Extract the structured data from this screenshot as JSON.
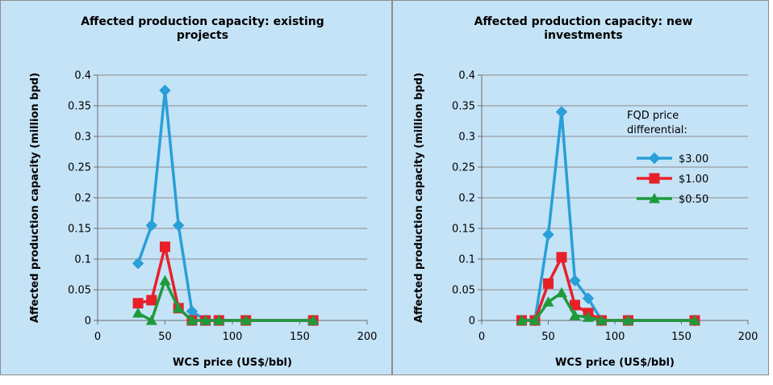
{
  "chart_data": [
    {
      "type": "line",
      "title": "Affected production capacity: existing projects",
      "title_lines": [
        "Affected production capacity: existing",
        "projects"
      ],
      "xlabel": "WCS price (US$/bbl)",
      "ylabel": "Affected production capacity (million bpd)",
      "xlim": [
        0,
        200
      ],
      "ylim": [
        0,
        0.4
      ],
      "x_ticks": [
        "0",
        "50",
        "100",
        "150",
        "200"
      ],
      "y_ticks": [
        "0",
        "0.05",
        "0.1",
        "0.15",
        "0.2",
        "0.25",
        "0.3",
        "0.35",
        "0.4"
      ],
      "grid": true,
      "legend": null,
      "series": [
        {
          "label": "$3.00",
          "color": "#2a9fd8",
          "marker": "diamond",
          "points": [
            [
              30,
              0.093
            ],
            [
              40,
              0.155
            ],
            [
              50,
              0.375
            ],
            [
              60,
              0.155
            ],
            [
              70,
              0.015
            ],
            [
              80,
              0
            ],
            [
              90,
              0
            ],
            [
              110,
              0
            ],
            [
              160,
              0
            ]
          ]
        },
        {
          "label": "$1.00",
          "color": "#e8202a",
          "marker": "square",
          "points": [
            [
              30,
              0.028
            ],
            [
              40,
              0.033
            ],
            [
              50,
              0.12
            ],
            [
              60,
              0.02
            ],
            [
              70,
              0
            ],
            [
              80,
              0
            ],
            [
              90,
              0
            ],
            [
              110,
              0
            ],
            [
              160,
              0
            ]
          ]
        },
        {
          "label": "$0.50",
          "color": "#1e9a3c",
          "marker": "triangle",
          "points": [
            [
              30,
              0.012
            ],
            [
              40,
              0
            ],
            [
              50,
              0.065
            ],
            [
              60,
              0.02
            ],
            [
              70,
              0
            ],
            [
              80,
              0
            ],
            [
              90,
              0
            ],
            [
              110,
              0
            ],
            [
              160,
              0
            ]
          ]
        }
      ]
    },
    {
      "type": "line",
      "title": "Affected production capacity: new investments",
      "title_lines": [
        "Affected production capacity: new",
        "investments"
      ],
      "xlabel": "WCS price (US$/bbl)",
      "ylabel": "Affected production capacity (million bpd)",
      "xlim": [
        0,
        200
      ],
      "ylim": [
        0,
        0.4
      ],
      "x_ticks": [
        "0",
        "50",
        "100",
        "150",
        "200"
      ],
      "y_ticks": [
        "0",
        "0.05",
        "0.1",
        "0.15",
        "0.2",
        "0.25",
        "0.3",
        "0.35",
        "0.4"
      ],
      "grid": true,
      "legend": {
        "title_lines": [
          "FQD price",
          "differential:"
        ],
        "placement": "right",
        "entries": [
          "$3.00",
          "$1.00",
          "$0.50"
        ]
      },
      "series": [
        {
          "label": "$3.00",
          "color": "#2a9fd8",
          "marker": "diamond",
          "points": [
            [
              30,
              0
            ],
            [
              40,
              0
            ],
            [
              50,
              0.14
            ],
            [
              60,
              0.34
            ],
            [
              70,
              0.065
            ],
            [
              80,
              0.036
            ],
            [
              90,
              0
            ],
            [
              110,
              0
            ],
            [
              160,
              0
            ]
          ]
        },
        {
          "label": "$1.00",
          "color": "#e8202a",
          "marker": "square",
          "points": [
            [
              30,
              0
            ],
            [
              40,
              0
            ],
            [
              50,
              0.06
            ],
            [
              60,
              0.103
            ],
            [
              70,
              0.025
            ],
            [
              80,
              0.012
            ],
            [
              90,
              0
            ],
            [
              110,
              0
            ],
            [
              160,
              0
            ]
          ]
        },
        {
          "label": "$0.50",
          "color": "#1e9a3c",
          "marker": "triangle",
          "points": [
            [
              30,
              0
            ],
            [
              40,
              0
            ],
            [
              50,
              0.03
            ],
            [
              60,
              0.045
            ],
            [
              70,
              0.008
            ],
            [
              80,
              0.005
            ],
            [
              90,
              0
            ],
            [
              110,
              0
            ],
            [
              160,
              0
            ]
          ]
        }
      ]
    }
  ]
}
